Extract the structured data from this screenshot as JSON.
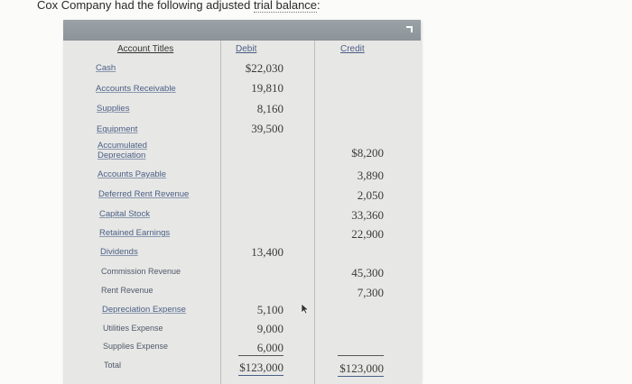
{
  "prompt": {
    "prefix": "Cox Company had the following adjusted ",
    "link": "trial balance",
    "suffix": ":"
  },
  "table": {
    "headers": {
      "accounts": "Account Titles",
      "debit": "Debit",
      "credit": "Credit"
    },
    "rows": [
      {
        "account": "Cash",
        "debit": "$22,030",
        "credit": ""
      },
      {
        "account": "Accounts Receivable",
        "debit": "19,810",
        "credit": ""
      },
      {
        "account": "Supplies",
        "debit": "8,160",
        "credit": ""
      },
      {
        "account": "Equipment",
        "debit": "39,500",
        "credit": ""
      },
      {
        "account": "Accumulated Depreciation",
        "debit": "",
        "credit": "$8,200"
      },
      {
        "account": "Accounts Payable",
        "debit": "",
        "credit": "3,890"
      },
      {
        "account": "Deferred Rent Revenue",
        "debit": "",
        "credit": "2,050"
      },
      {
        "account": "Capital Stock",
        "debit": "",
        "credit": "33,360"
      },
      {
        "account": "Retained Earnings",
        "debit": "",
        "credit": "22,900"
      },
      {
        "account": "Dividends",
        "debit": "13,400",
        "credit": ""
      },
      {
        "account": "Commission Revenue",
        "debit": "",
        "credit": "45,300"
      },
      {
        "account": "Rent Revenue",
        "debit": "",
        "credit": "7,300"
      },
      {
        "account": "Depreciation Expense",
        "debit": "5,100",
        "credit": ""
      },
      {
        "account": "Utilities Expense",
        "debit": "9,000",
        "credit": ""
      },
      {
        "account": "Supplies Expense",
        "debit": "6,000",
        "credit": ""
      }
    ],
    "total": {
      "label": "Total",
      "debit": "$123,000",
      "credit": "$123,000"
    }
  },
  "icons": {
    "expand": "expand-corner-icon",
    "cursor": "mouse-pointer-icon"
  }
}
